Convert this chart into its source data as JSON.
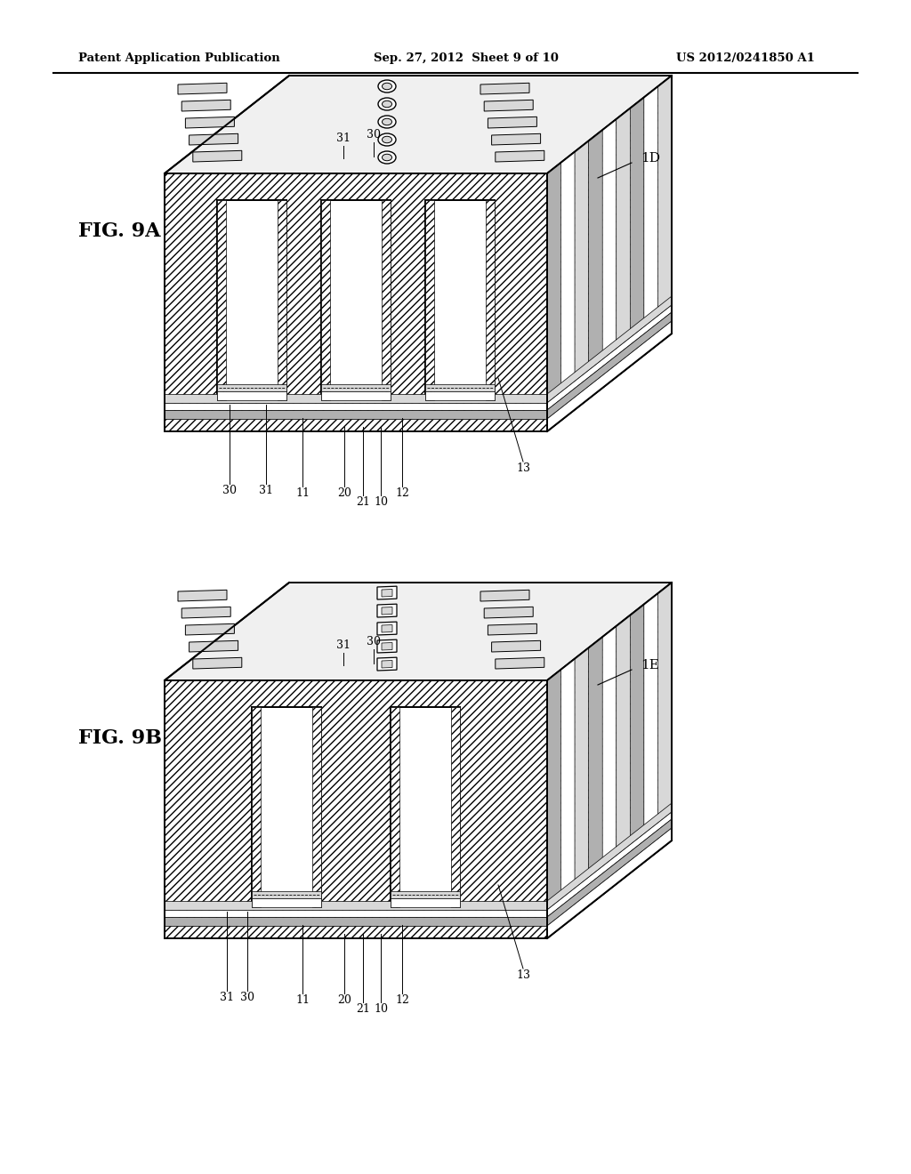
{
  "bg_color": "#ffffff",
  "line_color": "#000000",
  "title": "Patent Application Publication",
  "subtitle": "Sep. 27, 2012  Sheet 9 of 10",
  "patent_num": "US 2012/0241850 A1",
  "fig9A_label": "FIG. 9A",
  "fig9B_label": "FIG. 9B",
  "dev9A_label": "1D",
  "dev9B_label": "1E",
  "hatch_main": "////",
  "hatch_light": "///",
  "gray_light": "#d8d8d8",
  "gray_mid": "#b0b0b0",
  "gray_dark": "#888888"
}
